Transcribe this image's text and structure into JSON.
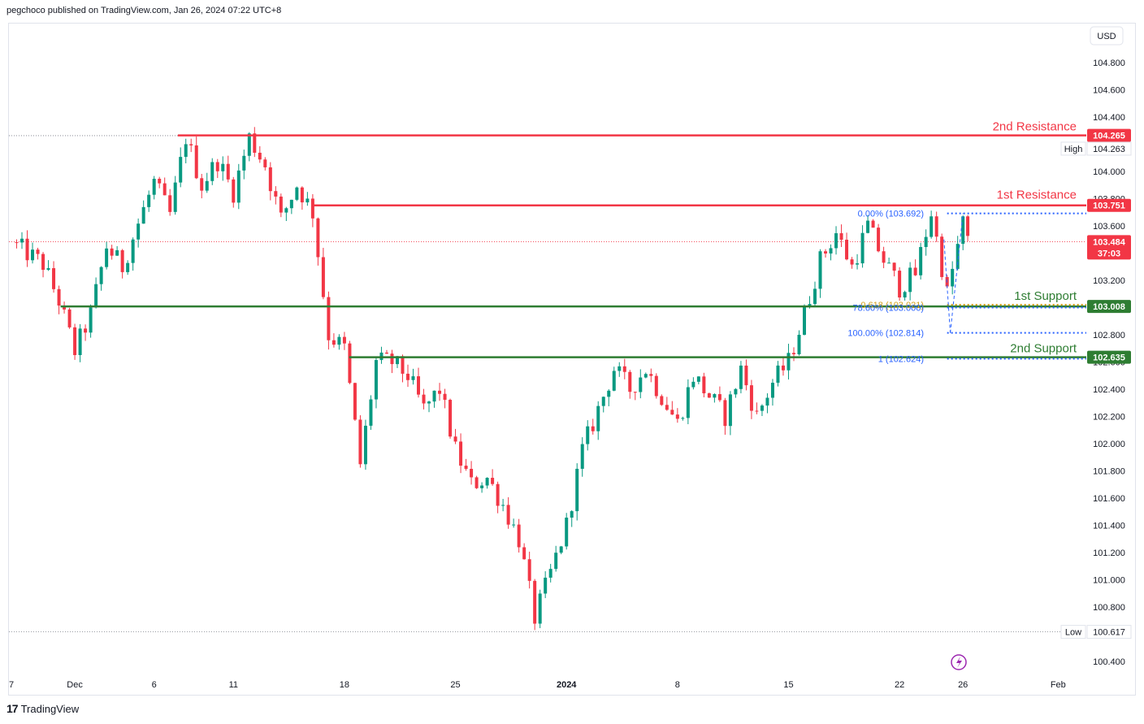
{
  "header": {
    "text": "pegchoco published on TradingView.com, Jan 26, 2024 07:22 UTC+8"
  },
  "footer": {
    "brand": "TradingView",
    "logo_glyph": "17"
  },
  "currency_button": "USD",
  "chart_data": {
    "type": "candlestick",
    "title": "",
    "currency": "USD",
    "ylim": [
      100.3,
      104.95
    ],
    "yticks": [
      "104.800",
      "104.600",
      "104.400",
      "104.200",
      "104.000",
      "103.800",
      "103.600",
      "103.400",
      "103.200",
      "103.000",
      "102.800",
      "102.600",
      "102.400",
      "102.200",
      "102.000",
      "101.800",
      "101.600",
      "101.400",
      "101.200",
      "101.000",
      "100.800",
      "100.600",
      "100.400"
    ],
    "xticks": [
      {
        "label": "7",
        "day": 0
      },
      {
        "label": "Dec",
        "day": 4
      },
      {
        "label": "6",
        "day": 9
      },
      {
        "label": "11",
        "day": 14
      },
      {
        "label": "18",
        "day": 21
      },
      {
        "label": "25",
        "day": 28
      },
      {
        "label": "2024",
        "day": 35
      },
      {
        "label": "8",
        "day": 42
      },
      {
        "label": "15",
        "day": 49
      },
      {
        "label": "22",
        "day": 56
      },
      {
        "label": "26",
        "day": 60
      },
      {
        "label": "Feb",
        "day": 66
      }
    ],
    "candles_path": [
      [
        0,
        103.48
      ],
      [
        2,
        103.32
      ],
      [
        3,
        103.05
      ],
      [
        4,
        102.68
      ],
      [
        5,
        102.95
      ],
      [
        6,
        103.45
      ],
      [
        7,
        103.3
      ],
      [
        8,
        103.62
      ],
      [
        9,
        103.92
      ],
      [
        10,
        103.68
      ],
      [
        11,
        104.25
      ],
      [
        12,
        103.9
      ],
      [
        13,
        104.08
      ],
      [
        14,
        103.85
      ],
      [
        15,
        104.25
      ],
      [
        16,
        104.05
      ],
      [
        17,
        103.65
      ],
      [
        18,
        103.9
      ],
      [
        19,
        103.7
      ],
      [
        20,
        102.8
      ],
      [
        21,
        102.7
      ],
      [
        22,
        101.85
      ],
      [
        23,
        102.6
      ],
      [
        24,
        102.6
      ],
      [
        25,
        102.5
      ],
      [
        26,
        102.25
      ],
      [
        27,
        102.4
      ],
      [
        28,
        101.95
      ],
      [
        29,
        101.7
      ],
      [
        30,
        101.75
      ],
      [
        31,
        101.55
      ],
      [
        32,
        101.3
      ],
      [
        33,
        100.72
      ],
      [
        34,
        101.05
      ],
      [
        35,
        101.4
      ],
      [
        36,
        101.95
      ],
      [
        37,
        102.25
      ],
      [
        38,
        102.55
      ],
      [
        39,
        102.4
      ],
      [
        40,
        102.55
      ],
      [
        41,
        102.35
      ],
      [
        42,
        102.15
      ],
      [
        43,
        102.5
      ],
      [
        44,
        102.35
      ],
      [
        45,
        102.2
      ],
      [
        46,
        102.55
      ],
      [
        47,
        102.2
      ],
      [
        48,
        102.45
      ],
      [
        49,
        102.6
      ],
      [
        50,
        102.95
      ],
      [
        51,
        103.35
      ],
      [
        52,
        103.55
      ],
      [
        53,
        103.3
      ],
      [
        54,
        103.6
      ],
      [
        55,
        103.35
      ],
      [
        56,
        103.15
      ],
      [
        57,
        103.25
      ],
      [
        58,
        103.7
      ],
      [
        59,
        103.1
      ],
      [
        60,
        103.62
      ],
      [
        60.3,
        103.48
      ]
    ],
    "high": {
      "label": "High",
      "value": "104.263"
    },
    "low": {
      "label": "Low",
      "value": "100.617"
    },
    "last_price": {
      "value": "103.484",
      "countdown": "37:03",
      "color": "#f23645"
    },
    "levels": [
      {
        "name": "2nd Resistance",
        "value": 104.265,
        "badge": "104.265",
        "color": "#f23645",
        "start_day": 10.5
      },
      {
        "name": "1st Resistance",
        "value": 103.751,
        "badge": "103.751",
        "color": "#f23645",
        "start_day": 19.0
      },
      {
        "name": "1st Support",
        "value": 103.008,
        "badge": "103.008",
        "color": "#2e7d32",
        "start_day": 3.1
      },
      {
        "name": "2nd Support",
        "value": 102.635,
        "badge": "102.635",
        "color": "#2e7d32",
        "start_day": 21.3
      }
    ],
    "fib_levels": [
      {
        "label": "0.00% (103.692)",
        "value": 103.692,
        "color": "#2962ff"
      },
      {
        "label": "0.618 (103.021)",
        "value": 103.021,
        "color": "#d4a017"
      },
      {
        "label": "78.60% (103.000)",
        "value": 103.0,
        "color": "#2962ff"
      },
      {
        "label": "100.00% (102.814)",
        "value": 102.814,
        "color": "#2962ff"
      },
      {
        "label": "1 (102.624)",
        "value": 102.624,
        "color": "#2962ff"
      }
    ],
    "colors": {
      "up": "#089981",
      "down": "#f23645",
      "grid": "#e0e3eb"
    }
  }
}
